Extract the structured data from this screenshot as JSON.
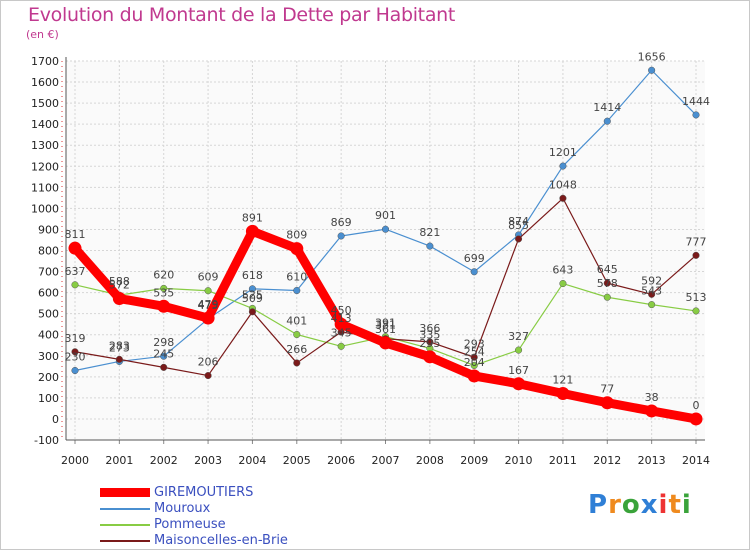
{
  "title": "Evolution du Montant de la Dette par Habitant",
  "subtitle": "(en €)",
  "logo": "Proxiti",
  "chart_data": {
    "type": "line",
    "title": "Evolution du Montant de la Dette par Habitant",
    "ylabel": "(en €)",
    "xlabel": "",
    "ylim": [
      -100,
      1700
    ],
    "yticks": [
      -100,
      0,
      100,
      200,
      300,
      400,
      500,
      600,
      700,
      800,
      900,
      1000,
      1100,
      1200,
      1300,
      1400,
      1500,
      1600,
      1700
    ],
    "grid": true,
    "x": [
      "2000",
      "2001",
      "2002",
      "2003",
      "2004",
      "2005",
      "2006",
      "2007",
      "2008",
      "2009",
      "2010",
      "2011",
      "2012",
      "2013",
      "2014"
    ],
    "series": [
      {
        "name": "GIREMOUTIERS",
        "color": "#ff0000",
        "values": [
          811,
          572,
          535,
          479,
          891,
          809,
          450,
          361,
          295,
          204,
          167,
          121,
          77,
          38,
          0
        ]
      },
      {
        "name": "Mouroux",
        "color": "#4a8fd0",
        "values": [
          230,
          273,
          298,
          475,
          618,
          610,
          869,
          901,
          821,
          699,
          874,
          1201,
          1414,
          1656,
          1444
        ]
      },
      {
        "name": "Pommeuse",
        "color": "#88cc44",
        "values": [
          637,
          588,
          620,
          609,
          525,
          401,
          345,
          391,
          335,
          254,
          327,
          643,
          578,
          543,
          513
        ]
      },
      {
        "name": "Maisoncelles-en-Brie",
        "color": "#7a1a1a",
        "values": [
          319,
          283,
          245,
          206,
          509,
          266,
          413,
          381,
          366,
          293,
          855,
          1048,
          645,
          592,
          777
        ]
      }
    ],
    "legend_position": "bottom-left"
  }
}
